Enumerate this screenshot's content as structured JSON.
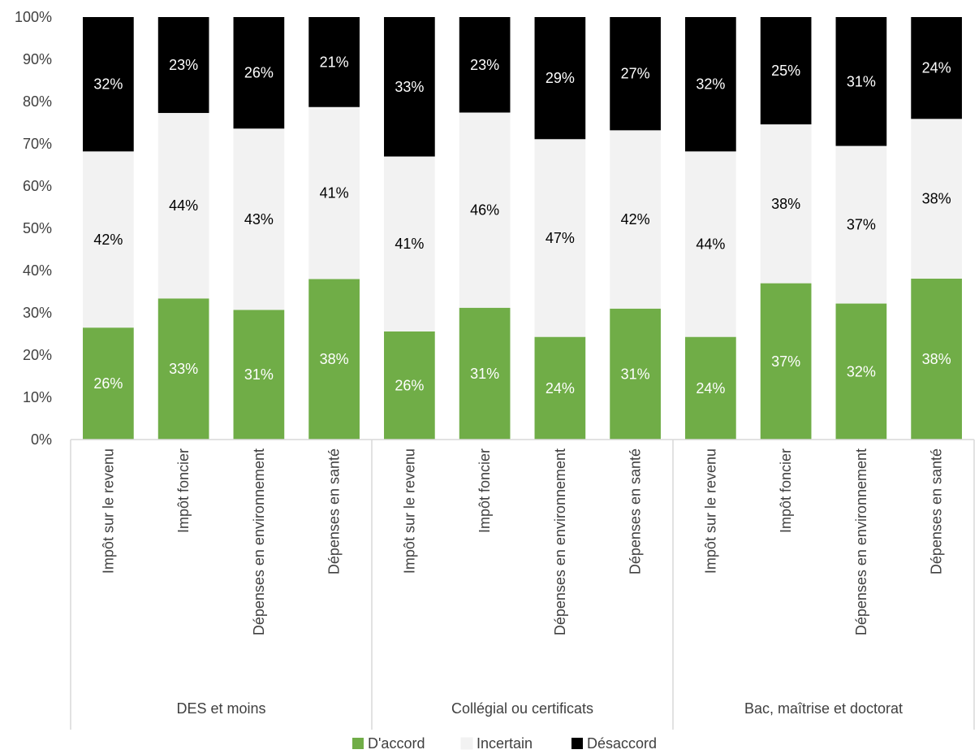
{
  "chart_data": {
    "type": "bar",
    "stacked": true,
    "percent_stacked": true,
    "groups": [
      {
        "label": "DES et moins",
        "categories": [
          "Impôt sur le revenu",
          "Impôt foncier",
          "Dépenses en environnement",
          "Dépenses en santé"
        ]
      },
      {
        "label": "Collégial ou certificats",
        "categories": [
          "Impôt sur le revenu",
          "Impôt foncier",
          "Dépenses en environnement",
          "Dépenses en santé"
        ]
      },
      {
        "label": "Bac, maîtrise et doctorat",
        "categories": [
          "Impôt sur le revenu",
          "Impôt foncier",
          "Dépenses en environnement",
          "Dépenses en santé"
        ]
      }
    ],
    "series": [
      {
        "name": "D'accord",
        "color": "#70ad47",
        "label_color": "#ffffff",
        "values": [
          26.5,
          33.4,
          30.7,
          38.0,
          25.6,
          31.2,
          24.3,
          31.0,
          24.3,
          37.0,
          32.2,
          38.1
        ],
        "labels": [
          "26%",
          "33%",
          "31%",
          "38%",
          "26%",
          "31%",
          "24%",
          "31%",
          "24%",
          "37%",
          "32%",
          "38%"
        ]
      },
      {
        "name": "Incertain",
        "color": "#f2f2f2",
        "label_color": "#000000",
        "values": [
          41.7,
          43.9,
          42.9,
          40.7,
          41.4,
          46.2,
          46.8,
          42.2,
          43.9,
          37.6,
          37.3,
          37.8
        ],
        "labels": [
          "42%",
          "44%",
          "43%",
          "41%",
          "41%",
          "46%",
          "47%",
          "42%",
          "44%",
          "38%",
          "37%",
          "38%"
        ]
      },
      {
        "name": "Désaccord",
        "color": "#000000",
        "label_color": "#ffffff",
        "values": [
          31.8,
          22.7,
          26.4,
          21.3,
          33.0,
          22.6,
          28.9,
          26.8,
          31.8,
          25.4,
          30.5,
          24.1
        ],
        "labels": [
          "32%",
          "23%",
          "26%",
          "21%",
          "33%",
          "23%",
          "29%",
          "27%",
          "32%",
          "25%",
          "31%",
          "24%"
        ]
      }
    ],
    "y_ticks": [
      "0%",
      "10%",
      "20%",
      "30%",
      "40%",
      "50%",
      "60%",
      "70%",
      "80%",
      "90%",
      "100%"
    ],
    "ylim": [
      0,
      100
    ],
    "grid": false,
    "legend_position": "bottom"
  }
}
